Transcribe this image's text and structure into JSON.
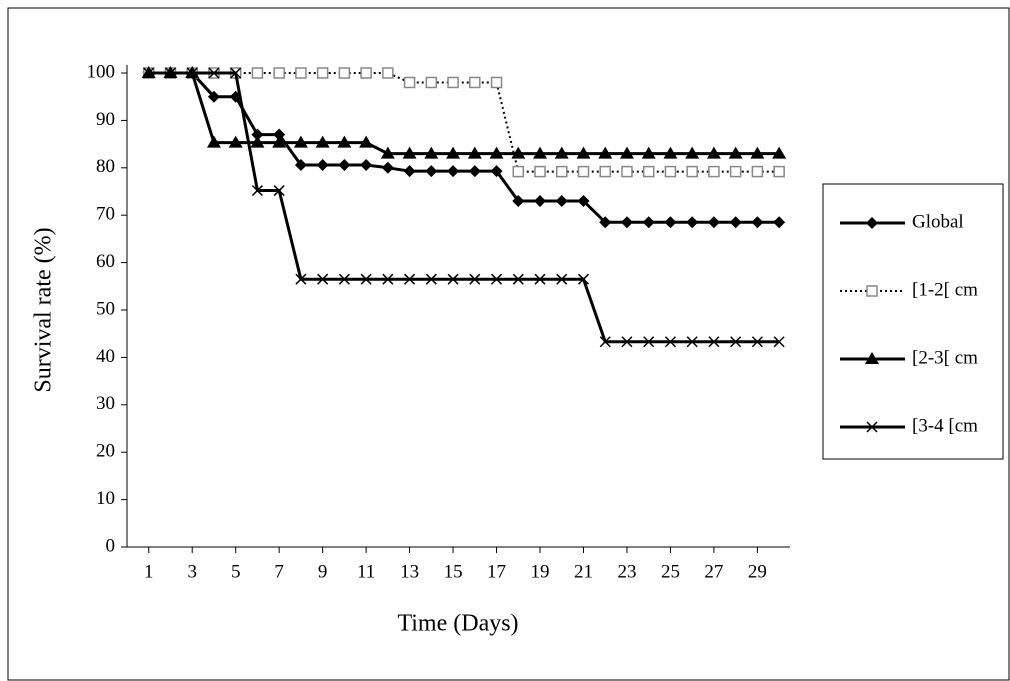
{
  "chart_data": {
    "type": "line",
    "xlabel": "Time (Days)",
    "ylabel": "Survival rate (%)",
    "x": [
      1,
      2,
      3,
      4,
      5,
      6,
      7,
      8,
      9,
      10,
      11,
      12,
      13,
      14,
      15,
      16,
      17,
      18,
      19,
      20,
      21,
      22,
      23,
      24,
      25,
      26,
      27,
      28,
      29,
      30
    ],
    "xlim": [
      0,
      30.5
    ],
    "xticks": [
      1,
      3,
      5,
      7,
      9,
      11,
      13,
      15,
      17,
      19,
      21,
      23,
      25,
      27,
      29
    ],
    "ylim": [
      0,
      100
    ],
    "yticks": [
      0,
      10,
      20,
      30,
      40,
      50,
      60,
      70,
      80,
      90,
      100
    ],
    "legend": "right",
    "series": [
      {
        "name": "Global",
        "color": "#000000",
        "marker": "diamond",
        "dotted": false,
        "values": [
          100,
          100,
          100,
          95,
          95,
          87,
          87,
          80.6,
          80.6,
          80.6,
          80.6,
          80,
          79.3,
          79.3,
          79.3,
          79.3,
          79.3,
          73,
          73,
          73,
          73,
          68.5,
          68.5,
          68.5,
          68.5,
          68.5,
          68.5,
          68.5,
          68.5,
          68.5
        ]
      },
      {
        "name": "[1-2[ cm",
        "color": "#888888",
        "marker": "square",
        "dotted": true,
        "values": [
          100,
          100,
          100,
          100,
          100,
          100,
          100,
          100,
          100,
          100,
          100,
          100,
          98,
          98,
          98,
          98,
          98,
          79.2,
          79.2,
          79.2,
          79.2,
          79.2,
          79.2,
          79.2,
          79.2,
          79.2,
          79.2,
          79.2,
          79.2,
          79.2
        ]
      },
      {
        "name": "[2-3[ cm",
        "color": "#000000",
        "marker": "triangle",
        "dotted": false,
        "values": [
          100,
          100,
          100,
          85.3,
          85.3,
          85.3,
          85.3,
          85.3,
          85.3,
          85.3,
          85.3,
          83,
          83,
          83,
          83,
          83,
          83,
          83,
          83,
          83,
          83,
          83,
          83,
          83,
          83,
          83,
          83,
          83,
          83,
          83
        ]
      },
      {
        "name": "[3-4 [cm",
        "color": "#000000",
        "marker": "cross",
        "dotted": false,
        "values": [
          100,
          100,
          100,
          100,
          100,
          75.2,
          75.2,
          56.5,
          56.5,
          56.5,
          56.5,
          56.5,
          56.5,
          56.5,
          56.5,
          56.5,
          56.5,
          56.5,
          56.5,
          56.5,
          56.5,
          43.3,
          43.3,
          43.3,
          43.3,
          43.3,
          43.3,
          43.3,
          43.3,
          43.3
        ]
      }
    ]
  }
}
